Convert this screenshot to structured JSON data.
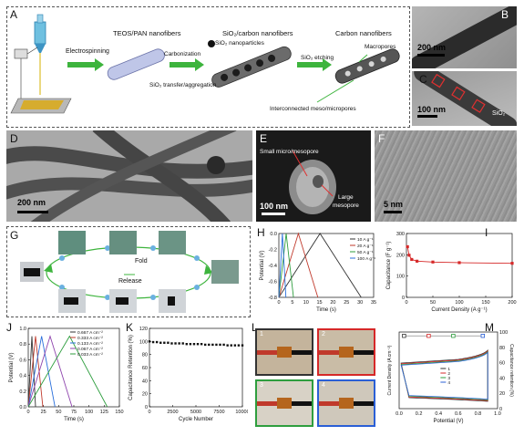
{
  "panelA": {
    "letter": "A",
    "step_electrospinning": "Electrospinning",
    "title_teos": "TEOS/PAN nanofibers",
    "title_sio2c": "SiO₂/carbon nanofibers",
    "title_cnf": "Carbon nanofibers",
    "label_carbonization": "Carbonization",
    "label_nanoparticles": "SiO₂ nanoparticles",
    "label_transfer": "SiO₂ transfer/aggregation",
    "label_etching": "SiO₂ etching",
    "label_macropores": "Macropores",
    "label_interconnected": "Interconnected meso/micropores"
  },
  "panelB": {
    "letter": "B",
    "scale": "200 nm"
  },
  "panelC": {
    "letter": "C",
    "scale": "100 nm",
    "label": "SiO₂"
  },
  "panelD": {
    "letter": "D",
    "scale": "200 nm"
  },
  "panelE": {
    "letter": "E",
    "scale": "100 nm",
    "label_small": "Small micro/mesopore",
    "label_large_1": "Large",
    "label_large_2": "mesopore"
  },
  "panelF": {
    "letter": "F",
    "scale": "5 nm"
  },
  "panelG": {
    "letter": "G",
    "fold": "Fold",
    "release": "Release"
  },
  "panelH": {
    "letter": "H",
    "chart_data": {
      "type": "line",
      "xlabel": "Time (s)",
      "ylabel": "Potential (V)",
      "xlim": [
        0,
        35
      ],
      "ylim": [
        -0.8,
        0.0
      ],
      "xticks": [
        "0",
        "5",
        "10",
        "15",
        "20",
        "25",
        "30",
        "35"
      ],
      "yticks": [
        "0.0",
        "-0.2",
        "-0.4",
        "-0.6",
        "-0.8"
      ],
      "legend_position": "top-right",
      "series": [
        {
          "name": "10 A g⁻¹",
          "color": "#333333",
          "x": [
            0,
            15.2,
            30.4
          ],
          "y": [
            -0.8,
            0.0,
            -0.8
          ]
        },
        {
          "name": "20 A g⁻¹",
          "color": "#c0392b",
          "x": [
            0,
            7.2,
            14.4
          ],
          "y": [
            -0.8,
            0.0,
            -0.8
          ]
        },
        {
          "name": "50 A g⁻¹",
          "color": "#2e9e3e",
          "x": [
            0,
            2.7,
            5.4
          ],
          "y": [
            -0.8,
            0.0,
            -0.8
          ]
        },
        {
          "name": "100 A g⁻¹",
          "color": "#2a6fdb",
          "x": [
            0,
            1.3,
            2.6
          ],
          "y": [
            -0.8,
            0.0,
            -0.8
          ]
        }
      ]
    }
  },
  "panelI": {
    "letter": "I",
    "chart_data": {
      "type": "line",
      "xlabel": "Current Density (A g⁻¹)",
      "ylabel": "Capacitance (F g⁻¹)",
      "xlim": [
        0,
        200
      ],
      "ylim": [
        0,
        300
      ],
      "xticks": [
        "0",
        "50",
        "100",
        "150",
        "200"
      ],
      "yticks": [
        "0",
        "100",
        "200",
        "300"
      ],
      "series": [
        {
          "name": "",
          "color": "#d62828",
          "x": [
            2,
            5,
            10,
            20,
            50,
            100,
            200
          ],
          "y": [
            238,
            198,
            178,
            170,
            166,
            163,
            160
          ]
        }
      ]
    }
  },
  "panelJ": {
    "letter": "J",
    "chart_data": {
      "type": "line",
      "xlabel": "Time (s)",
      "ylabel": "Potential (V)",
      "xlim": [
        0,
        150
      ],
      "ylim": [
        0.0,
        1.0
      ],
      "xticks": [
        "0",
        "25",
        "50",
        "75",
        "100",
        "125",
        "150"
      ],
      "yticks": [
        "0.0",
        "0.2",
        "0.4",
        "0.6",
        "0.8",
        "1.0"
      ],
      "legend_position": "top-right",
      "series": [
        {
          "name": "0.667 A cm⁻²",
          "color": "#333333",
          "x": [
            0,
            6,
            12
          ],
          "y": [
            0.0,
            0.9,
            0.0
          ]
        },
        {
          "name": "0.333 A cm⁻²",
          "color": "#c0392b",
          "x": [
            0,
            12,
            24
          ],
          "y": [
            0.0,
            0.9,
            0.0
          ]
        },
        {
          "name": "0.133 A cm⁻²",
          "color": "#2a6fdb",
          "x": [
            0,
            22,
            44
          ],
          "y": [
            0.0,
            0.9,
            0.0
          ]
        },
        {
          "name": "0.067 A cm⁻²",
          "color": "#8e44ad",
          "x": [
            0,
            36,
            72
          ],
          "y": [
            0.0,
            0.9,
            0.0
          ]
        },
        {
          "name": "0.033 A cm⁻²",
          "color": "#2e9e3e",
          "x": [
            0,
            68,
            130
          ],
          "y": [
            0.0,
            0.9,
            0.0
          ]
        }
      ]
    }
  },
  "panelK": {
    "letter": "K",
    "chart_data": {
      "type": "scatter",
      "xlabel": "Cycle Number",
      "ylabel": "Capacitance Retention (%)",
      "xlim": [
        0,
        10000
      ],
      "ylim": [
        0,
        120
      ],
      "xticks": [
        "0",
        "2500",
        "5000",
        "7500",
        "10000"
      ],
      "yticks": [
        "0",
        "20",
        "40",
        "60",
        "80",
        "100",
        "120"
      ],
      "series": [
        {
          "name": "",
          "color": "#111111",
          "x": [
            0,
            400,
            800,
            1200,
            1600,
            2000,
            2400,
            2800,
            3200,
            3600,
            4000,
            4400,
            4800,
            5200,
            5600,
            6000,
            6400,
            6800,
            7200,
            7600,
            8000,
            8400,
            8800,
            9200,
            9600,
            10000
          ],
          "y": [
            100,
            99,
            99,
            98,
            98,
            98,
            97,
            97,
            97,
            97,
            96,
            96,
            96,
            96,
            96,
            95,
            95,
            95,
            95,
            95,
            95,
            94,
            94,
            94,
            94,
            94
          ]
        }
      ]
    }
  },
  "panelL": {
    "letter": "L",
    "tiles": [
      "1",
      "2",
      "3",
      "4"
    ],
    "tile_colors": [
      "#333333",
      "#d62828",
      "#2e9e3e",
      "#2a5fd6"
    ]
  },
  "panelM": {
    "letter": "M",
    "chart_data": {
      "type": "line",
      "xlabel": "Potential (V)",
      "ylabel": "Current Density (A cm⁻²)",
      "y2label": "Capacitance retention (%)",
      "xlim": [
        0.0,
        1.0
      ],
      "xticks": [
        "0.0",
        "0.2",
        "0.4",
        "0.6",
        "0.8",
        "1.0"
      ],
      "y2ticks": [
        "0",
        "20",
        "40",
        "60",
        "80",
        "100"
      ],
      "legend_position": "center",
      "series": [
        {
          "name": "1",
          "color": "#333333"
        },
        {
          "name": "2",
          "color": "#d62828"
        },
        {
          "name": "3",
          "color": "#2e9e3e"
        },
        {
          "name": "4",
          "color": "#2a5fd6"
        }
      ],
      "retention": {
        "x": [
          0.05,
          0.3,
          0.55,
          0.85
        ],
        "y": [
          100,
          100,
          100,
          100
        ],
        "colors": [
          "#333333",
          "#d62828",
          "#2e9e3e",
          "#2a5fd6"
        ]
      }
    }
  }
}
